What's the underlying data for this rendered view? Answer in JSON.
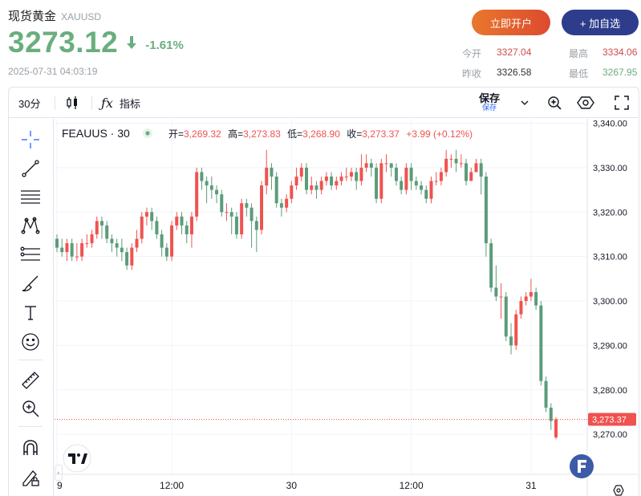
{
  "header": {
    "name": "现货黄金",
    "code": "XAUUSD",
    "price": "3273.12",
    "change_pct": "-1.61%",
    "timestamp": "2025-07-31 04:03:19",
    "open_account_label": "立即开户",
    "watchlist_label": "+ 加自选"
  },
  "stats": {
    "today_open_label": "今开",
    "today_open": "3327.04",
    "prev_close_label": "昨收",
    "prev_close": "3326.58",
    "high_label": "最高",
    "high": "3334.06",
    "low_label": "最低",
    "low": "3267.95"
  },
  "toolbar": {
    "interval": "30分",
    "indicators_label": "指标",
    "save_label": "保存",
    "save_sub_label": "保存"
  },
  "legend": {
    "symbol": "FEAUUS · 30",
    "open_label": "开=",
    "open": "3,269.32",
    "high_label": "高=",
    "high": "3,273.83",
    "low_label": "低=",
    "low": "3,268.90",
    "close_label": "收=",
    "close": "3,273.37",
    "change": "+3.99 (+0.12%)"
  },
  "colors": {
    "up": "#ef5350",
    "down": "#5b9c7b",
    "price_green": "#6aae7e",
    "brand_blue": "#2d3d8c"
  },
  "chart_data": {
    "type": "candlestick",
    "y_ticks": [
      3270,
      3280,
      3290,
      3300,
      3310,
      3320,
      3330,
      3340
    ],
    "y_tick_labels": [
      "3,270.00",
      "3,280.00",
      "3,290.00",
      "3,300.00",
      "3,310.00",
      "3,320.00",
      "3,330.00",
      "3,340.00"
    ],
    "ylim": [
      3261,
      3341
    ],
    "x_tick_labels": [
      "9",
      "12:00",
      "30",
      "12:00",
      "31"
    ],
    "x_tick_index": [
      0,
      23,
      47,
      71,
      95
    ],
    "last_price_label": "3,273.37",
    "last_price": 3273.37,
    "grid": true,
    "candles": [
      [
        3314.0,
        3312.0,
        3315.0,
        3311.0
      ],
      [
        3312.0,
        3311.0,
        3314.0,
        3310.0
      ],
      [
        3311.0,
        3313.0,
        3314.0,
        3309.0
      ],
      [
        3313.0,
        3310.0,
        3314.0,
        3309.0
      ],
      [
        3310.0,
        3310.0,
        3313.0,
        3309.0
      ],
      [
        3310.0,
        3313.0,
        3314.0,
        3309.0
      ],
      [
        3313.0,
        3313.0,
        3315.0,
        3312.0
      ],
      [
        3313.0,
        3315.0,
        3316.0,
        3312.0
      ],
      [
        3315.0,
        3318.0,
        3319.0,
        3314.0
      ],
      [
        3318.0,
        3317.0,
        3319.0,
        3314.0
      ],
      [
        3317.0,
        3314.0,
        3318.0,
        3313.0
      ],
      [
        3314.0,
        3313.0,
        3315.0,
        3311.0
      ],
      [
        3313.0,
        3312.0,
        3314.0,
        3310.0
      ],
      [
        3312.0,
        3311.0,
        3314.0,
        3309.0
      ],
      [
        3311.0,
        3308.0,
        3312.0,
        3307.0
      ],
      [
        3308.0,
        3312.0,
        3313.0,
        3307.0
      ],
      [
        3312.0,
        3314.0,
        3316.0,
        3311.0
      ],
      [
        3314.0,
        3319.0,
        3320.0,
        3313.0
      ],
      [
        3319.0,
        3320.0,
        3321.0,
        3317.0
      ],
      [
        3320.0,
        3318.0,
        3321.0,
        3316.0
      ],
      [
        3318.0,
        3315.0,
        3319.0,
        3314.0
      ],
      [
        3315.0,
        3312.0,
        3316.0,
        3310.0
      ],
      [
        3312.0,
        3310.0,
        3313.0,
        3309.0
      ],
      [
        3310.0,
        3317.0,
        3318.0,
        3309.0
      ],
      [
        3317.0,
        3319.0,
        3320.0,
        3316.0
      ],
      [
        3319.0,
        3317.0,
        3320.0,
        3315.0
      ],
      [
        3317.0,
        3315.0,
        3318.0,
        3313.0
      ],
      [
        3315.0,
        3319.0,
        3320.0,
        3312.0
      ],
      [
        3319.0,
        3329.0,
        3330.0,
        3318.0
      ],
      [
        3329.0,
        3327.0,
        3330.0,
        3325.0
      ],
      [
        3327.0,
        3326.0,
        3328.0,
        3322.0
      ],
      [
        3326.0,
        3325.0,
        3328.0,
        3323.0
      ],
      [
        3325.0,
        3324.0,
        3326.0,
        3322.0
      ],
      [
        3324.0,
        3320.0,
        3325.0,
        3319.0
      ],
      [
        3320.0,
        3320.0,
        3322.0,
        3318.0
      ],
      [
        3320.0,
        3319.0,
        3321.0,
        3315.0
      ],
      [
        3319.0,
        3315.0,
        3320.0,
        3314.0
      ],
      [
        3315.0,
        3322.0,
        3323.0,
        3314.0
      ],
      [
        3322.0,
        3321.0,
        3323.0,
        3319.0
      ],
      [
        3321.0,
        3318.0,
        3322.0,
        3312.0
      ],
      [
        3318.0,
        3316.0,
        3319.0,
        3311.0
      ],
      [
        3316.0,
        3326.0,
        3327.0,
        3315.0
      ],
      [
        3326.0,
        3330.0,
        3334.0,
        3324.0
      ],
      [
        3330.0,
        3328.0,
        3331.0,
        3325.0
      ],
      [
        3328.0,
        3322.0,
        3329.0,
        3321.0
      ],
      [
        3322.0,
        3321.0,
        3323.0,
        3319.0
      ],
      [
        3321.0,
        3323.0,
        3324.0,
        3320.0
      ],
      [
        3323.0,
        3326.0,
        3327.0,
        3322.0
      ],
      [
        3326.0,
        3328.0,
        3330.0,
        3325.0
      ],
      [
        3328.0,
        3330.0,
        3331.0,
        3327.0
      ],
      [
        3330.0,
        3325.0,
        3331.0,
        3324.0
      ],
      [
        3325.0,
        3326.0,
        3328.0,
        3324.0
      ],
      [
        3326.0,
        3325.0,
        3327.0,
        3323.0
      ],
      [
        3325.0,
        3327.0,
        3328.0,
        3324.0
      ],
      [
        3327.0,
        3328.0,
        3329.0,
        3326.0
      ],
      [
        3328.0,
        3326.0,
        3329.0,
        3325.0
      ],
      [
        3326.0,
        3327.0,
        3328.0,
        3325.0
      ],
      [
        3327.0,
        3328.0,
        3329.0,
        3326.0
      ],
      [
        3328.0,
        3328.0,
        3330.0,
        3327.0
      ],
      [
        3328.0,
        3329.0,
        3330.0,
        3327.0
      ],
      [
        3329.0,
        3327.0,
        3330.0,
        3325.0
      ],
      [
        3327.0,
        3330.0,
        3333.0,
        3326.0
      ],
      [
        3330.0,
        3331.0,
        3333.0,
        3329.0
      ],
      [
        3331.0,
        3330.0,
        3332.0,
        3328.0
      ],
      [
        3330.0,
        3323.0,
        3331.0,
        3322.0
      ],
      [
        3323.0,
        3331.0,
        3332.0,
        3322.0
      ],
      [
        3331.0,
        3331.0,
        3333.0,
        3329.0
      ],
      [
        3331.0,
        3330.0,
        3331.0,
        3328.0
      ],
      [
        3330.0,
        3327.0,
        3331.0,
        3326.0
      ],
      [
        3327.0,
        3325.0,
        3328.0,
        3324.0
      ],
      [
        3325.0,
        3330.0,
        3331.0,
        3324.0
      ],
      [
        3330.0,
        3327.0,
        3331.0,
        3325.0
      ],
      [
        3327.0,
        3326.0,
        3328.0,
        3325.0
      ],
      [
        3326.0,
        3325.0,
        3327.0,
        3324.0
      ],
      [
        3325.0,
        3323.0,
        3326.0,
        3322.0
      ],
      [
        3323.0,
        3327.0,
        3328.0,
        3322.0
      ],
      [
        3327.0,
        3327.0,
        3329.0,
        3326.0
      ],
      [
        3327.0,
        3329.0,
        3330.0,
        3326.0
      ],
      [
        3329.0,
        3332.0,
        3334.0,
        3328.0
      ],
      [
        3332.0,
        3332.0,
        3333.0,
        3330.0
      ],
      [
        3332.0,
        3331.0,
        3334.0,
        3329.0
      ],
      [
        3331.0,
        3331.0,
        3333.0,
        3330.0
      ],
      [
        3331.0,
        3327.0,
        3332.0,
        3326.0
      ],
      [
        3327.0,
        3329.0,
        3330.0,
        3327.0
      ],
      [
        3329.0,
        3331.0,
        3332.0,
        3329.0
      ],
      [
        3331.0,
        3328.0,
        3332.0,
        3324.0
      ],
      [
        3328.0,
        3313.0,
        3329.0,
        3310.0
      ],
      [
        3313.0,
        3303.0,
        3314.0,
        3302.0
      ],
      [
        3303.0,
        3301.0,
        3308.0,
        3300.0
      ],
      [
        3301.0,
        3301.0,
        3304.0,
        3296.0
      ],
      [
        3301.0,
        3292.0,
        3302.0,
        3291.0
      ],
      [
        3292.0,
        3290.0,
        3295.0,
        3288.0
      ],
      [
        3290.0,
        3297.0,
        3298.0,
        3289.0
      ],
      [
        3297.0,
        3300.0,
        3301.0,
        3296.0
      ],
      [
        3300.0,
        3301.0,
        3302.0,
        3299.0
      ],
      [
        3301.0,
        3302.0,
        3305.0,
        3300.0
      ],
      [
        3302.0,
        3299.0,
        3303.0,
        3298.0
      ],
      [
        3299.0,
        3282.0,
        3300.0,
        3281.0
      ],
      [
        3282.0,
        3276.0,
        3283.0,
        3275.0
      ],
      [
        3276.0,
        3273.0,
        3277.0,
        3271.0
      ],
      [
        3269.32,
        3273.37,
        3273.83,
        3268.9
      ]
    ]
  }
}
